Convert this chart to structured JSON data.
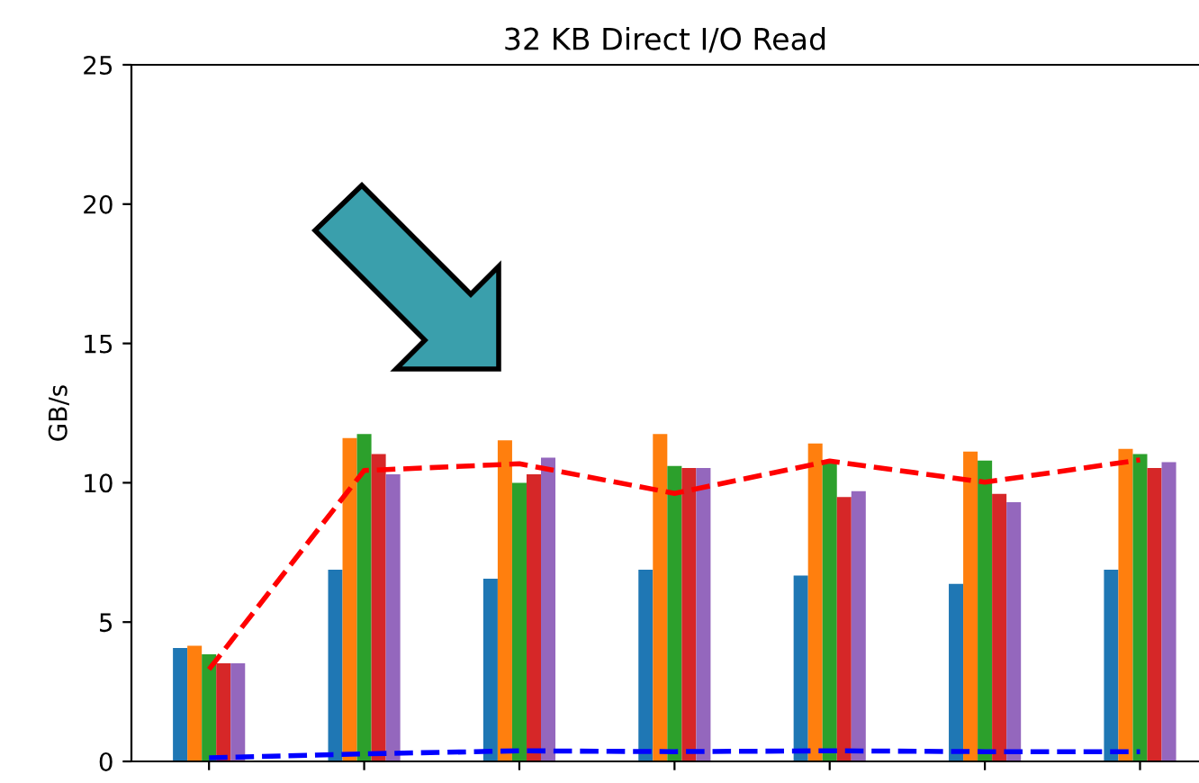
{
  "chart_data": {
    "type": "bar",
    "title": "32 KB Direct I/O Read",
    "ylabel": "GB/s",
    "categories": [
      null,
      null,
      null,
      null,
      null,
      null,
      null
    ],
    "series": [
      {
        "color": "#1f77b4",
        "values": [
          4.07,
          6.88,
          6.56,
          6.88,
          6.67,
          6.37,
          6.88
        ]
      },
      {
        "color": "#ff7f0e",
        "values": [
          4.15,
          11.6,
          11.52,
          11.75,
          11.41,
          11.12,
          11.22
        ]
      },
      {
        "color": "#2ca02c",
        "values": [
          3.84,
          11.75,
          10.0,
          10.6,
          10.8,
          10.8,
          11.03
        ]
      },
      {
        "color": "#d62728",
        "values": [
          3.52,
          11.03,
          10.3,
          10.53,
          9.49,
          9.6,
          10.53
        ]
      },
      {
        "color": "#9467bd",
        "values": [
          3.52,
          10.3,
          10.9,
          10.53,
          9.7,
          9.3,
          10.74
        ]
      },
      {
        "type": "line",
        "color": "#ff0000",
        "line_style": "dashed",
        "values": [
          3.3,
          10.44,
          10.68,
          9.62,
          10.78,
          10.02,
          10.82
        ]
      },
      {
        "type": "line",
        "color": "#0000ff",
        "line_style": "dashed",
        "values": [
          0.13,
          0.27,
          0.38,
          0.35,
          0.38,
          0.35,
          0.35
        ]
      }
    ],
    "ylim": [
      0,
      25
    ],
    "yticks": [
      0,
      5,
      10,
      15,
      20,
      25
    ],
    "grid": false,
    "legend": false
  }
}
